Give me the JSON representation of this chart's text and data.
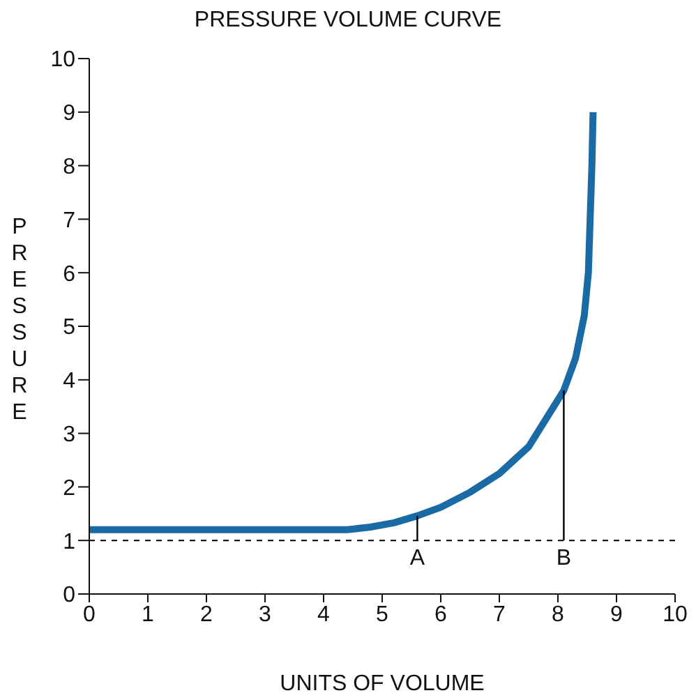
{
  "chart_data": {
    "type": "line",
    "title": "PRESSURE VOLUME CURVE",
    "xlabel": "UNITS OF VOLUME",
    "ylabel": "PRESSURE",
    "xlim": [
      0,
      10
    ],
    "xticks": [
      0,
      1,
      2,
      3,
      4,
      5,
      6,
      7,
      8,
      9,
      10
    ],
    "ylim": [
      0,
      10
    ],
    "yticks": [
      0,
      1,
      2,
      3,
      4,
      5,
      6,
      7,
      8,
      9,
      10
    ],
    "series": [
      {
        "color": "#1a6aa6",
        "x": [
          0,
          4.4,
          4.8,
          5.2,
          5.6,
          6,
          6.5,
          7,
          7.5,
          8.1,
          8.3,
          8.45,
          8.52,
          8.55,
          8.58,
          8.6
        ],
        "values": [
          1.2,
          1.2,
          1.25,
          1.33,
          1.46,
          1.62,
          1.9,
          2.25,
          2.75,
          3.8,
          4.4,
          5.2,
          6,
          7,
          8,
          9
        ]
      },
      {
        "color": "#000000",
        "x": [
          5.6,
          5.6
        ],
        "values": [
          1,
          1.46
        ]
      },
      {
        "color": "#000000",
        "x": [
          8.1,
          8.1
        ],
        "values": [
          1,
          3.8
        ]
      }
    ],
    "ref_lines": [
      {
        "axis": "y",
        "value": 1,
        "color": "#000000",
        "line_style": "dashed"
      }
    ],
    "annotations": [
      {
        "text": "A",
        "x": 5.6,
        "y": 1
      },
      {
        "text": "B",
        "x": 8.1,
        "y": 1
      }
    ]
  }
}
